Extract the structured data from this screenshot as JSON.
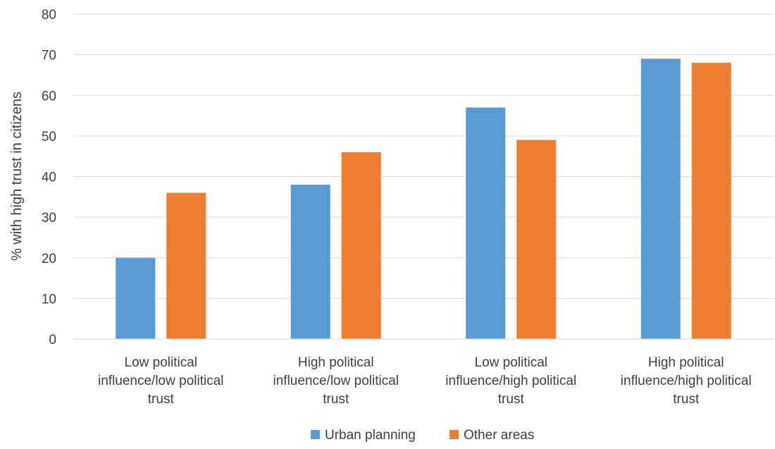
{
  "chart_data": {
    "type": "bar",
    "categories": [
      [
        "Low political",
        "influence/low political",
        "trust"
      ],
      [
        "High political",
        "influence/low political",
        "trust"
      ],
      [
        "Low political",
        "influence/high political",
        "trust"
      ],
      [
        "High political",
        "influence/high political",
        "trust"
      ]
    ],
    "series": [
      {
        "name": "Urban planning",
        "values": [
          20,
          38,
          57,
          69
        ],
        "color": "#5b9bd5"
      },
      {
        "name": "Other areas",
        "values": [
          36,
          46,
          49,
          68
        ],
        "color": "#ed7d31"
      }
    ],
    "title": "",
    "xlabel": "",
    "ylabel": "% with high trust in citizens",
    "ylim": [
      0,
      80
    ],
    "yticks": [
      0,
      10,
      20,
      30,
      40,
      50,
      60,
      70,
      80
    ],
    "grid": true,
    "legend_position": "bottom"
  }
}
